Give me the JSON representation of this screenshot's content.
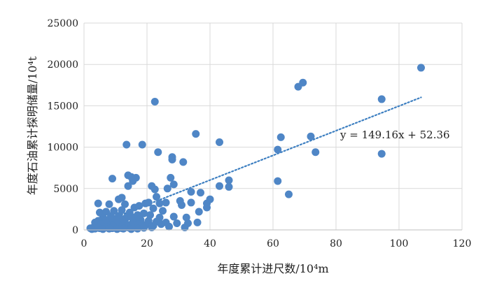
{
  "chart_data": {
    "type": "scatter",
    "xlabel": "年度累计进尺数/10⁴m",
    "ylabel": "年度石油累计探明储量/10⁴t",
    "xlim": [
      0,
      120
    ],
    "ylim": [
      0,
      25000
    ],
    "x_ticks": [
      0,
      20,
      40,
      60,
      80,
      100,
      120
    ],
    "y_ticks": [
      0,
      5000,
      10000,
      15000,
      20000,
      25000
    ],
    "x_tick_labels": [
      "0",
      "20",
      "40",
      "60",
      "80",
      "100",
      "120"
    ],
    "y_tick_labels": [
      "0",
      "5000",
      "10000",
      "15000",
      "20000",
      "25000"
    ],
    "grid": true,
    "marker_color": "#4f86c6",
    "trendline": {
      "type": "linear",
      "slope": 149.16,
      "intercept": 52.36,
      "x_range": [
        3.5,
        107
      ],
      "style": "dotted",
      "color": "#3d7fc1",
      "equation_label": "y = 149.16x + 52.36"
    },
    "series": [
      {
        "points": [
          [
            107,
            19600
          ],
          [
            69.5,
            17800
          ],
          [
            68,
            17300
          ],
          [
            94.5,
            15800
          ],
          [
            22.5,
            15500
          ],
          [
            72,
            11300
          ],
          [
            62.5,
            11200
          ],
          [
            35.5,
            11600
          ],
          [
            43,
            10600
          ],
          [
            13.5,
            10300
          ],
          [
            18.5,
            10300
          ],
          [
            61.5,
            9700
          ],
          [
            73.5,
            9400
          ],
          [
            94.5,
            9200
          ],
          [
            23.5,
            9400
          ],
          [
            28,
            8800
          ],
          [
            28,
            8500
          ],
          [
            31.5,
            8200
          ],
          [
            14,
            6600
          ],
          [
            15,
            6400
          ],
          [
            16.5,
            6300
          ],
          [
            15.5,
            5900
          ],
          [
            9,
            6200
          ],
          [
            27.5,
            6300
          ],
          [
            46,
            6000
          ],
          [
            61.5,
            5900
          ],
          [
            28.5,
            5500
          ],
          [
            14,
            5300
          ],
          [
            21.5,
            5300
          ],
          [
            22.5,
            4900
          ],
          [
            26.5,
            5000
          ],
          [
            43,
            5300
          ],
          [
            46,
            5200
          ],
          [
            65,
            4300
          ],
          [
            34,
            4600
          ],
          [
            37,
            4500
          ],
          [
            23,
            4000
          ],
          [
            30.5,
            3500
          ],
          [
            24,
            3200
          ],
          [
            19.5,
            3200
          ],
          [
            20.5,
            3300
          ],
          [
            26,
            3300
          ],
          [
            40,
            3700
          ],
          [
            39,
            3200
          ],
          [
            34,
            3300
          ],
          [
            31,
            3000
          ],
          [
            11,
            3700
          ],
          [
            12,
            3900
          ],
          [
            4.5,
            3200
          ],
          [
            8,
            3100
          ],
          [
            13,
            3100
          ],
          [
            16,
            2700
          ],
          [
            17.5,
            2900
          ],
          [
            22,
            2600
          ],
          [
            25,
            2300
          ],
          [
            36.5,
            2200
          ],
          [
            39,
            2700
          ],
          [
            5,
            2100
          ],
          [
            7,
            2200
          ],
          [
            9.5,
            2300
          ],
          [
            12,
            2400
          ],
          [
            14.5,
            2100
          ],
          [
            19,
            2000
          ],
          [
            21,
            1800
          ],
          [
            24,
            1500
          ],
          [
            28.5,
            1600
          ],
          [
            32.5,
            1500
          ],
          [
            6,
            1500
          ],
          [
            8.5,
            1700
          ],
          [
            11,
            1700
          ],
          [
            13.5,
            1500
          ],
          [
            16,
            1300
          ],
          [
            18,
            1200
          ],
          [
            20.5,
            1100
          ],
          [
            23,
            1000
          ],
          [
            26,
            900
          ],
          [
            29.5,
            800
          ],
          [
            33,
            800
          ],
          [
            36,
            900
          ],
          [
            3.5,
            900
          ],
          [
            4.5,
            1100
          ],
          [
            6.5,
            1000
          ],
          [
            8,
            900
          ],
          [
            10,
            1000
          ],
          [
            12,
            800
          ],
          [
            14,
            600
          ],
          [
            15.5,
            900
          ],
          [
            17.5,
            700
          ],
          [
            19.5,
            600
          ],
          [
            22,
            500
          ],
          [
            27,
            400
          ],
          [
            32,
            300
          ],
          [
            2,
            200
          ],
          [
            3,
            300
          ],
          [
            4,
            500
          ],
          [
            5,
            200
          ],
          [
            6,
            400
          ],
          [
            7,
            300
          ],
          [
            8,
            500
          ],
          [
            9,
            200
          ],
          [
            10,
            400
          ],
          [
            11,
            300
          ],
          [
            12,
            200
          ],
          [
            13,
            400
          ],
          [
            14,
            300
          ],
          [
            15,
            200
          ],
          [
            16,
            500
          ],
          [
            17,
            300
          ],
          [
            18,
            400
          ],
          [
            5.5,
            700
          ],
          [
            7.5,
            600
          ],
          [
            9.5,
            800
          ],
          [
            11.5,
            600
          ],
          [
            13,
            900
          ],
          [
            2.5,
            100
          ],
          [
            3.5,
            150
          ],
          [
            4.5,
            250
          ],
          [
            6,
            100
          ],
          [
            8,
            150
          ],
          [
            10.5,
            100
          ],
          [
            12.5,
            150
          ],
          [
            15,
            100
          ],
          [
            17,
            150
          ],
          [
            19,
            250
          ],
          [
            21.5,
            300
          ],
          [
            24.5,
            700
          ],
          [
            7,
            1200
          ],
          [
            9,
            1400
          ],
          [
            10.5,
            1200
          ],
          [
            12.5,
            1300
          ],
          [
            15,
            1600
          ],
          [
            17,
            1800
          ]
        ]
      }
    ]
  }
}
